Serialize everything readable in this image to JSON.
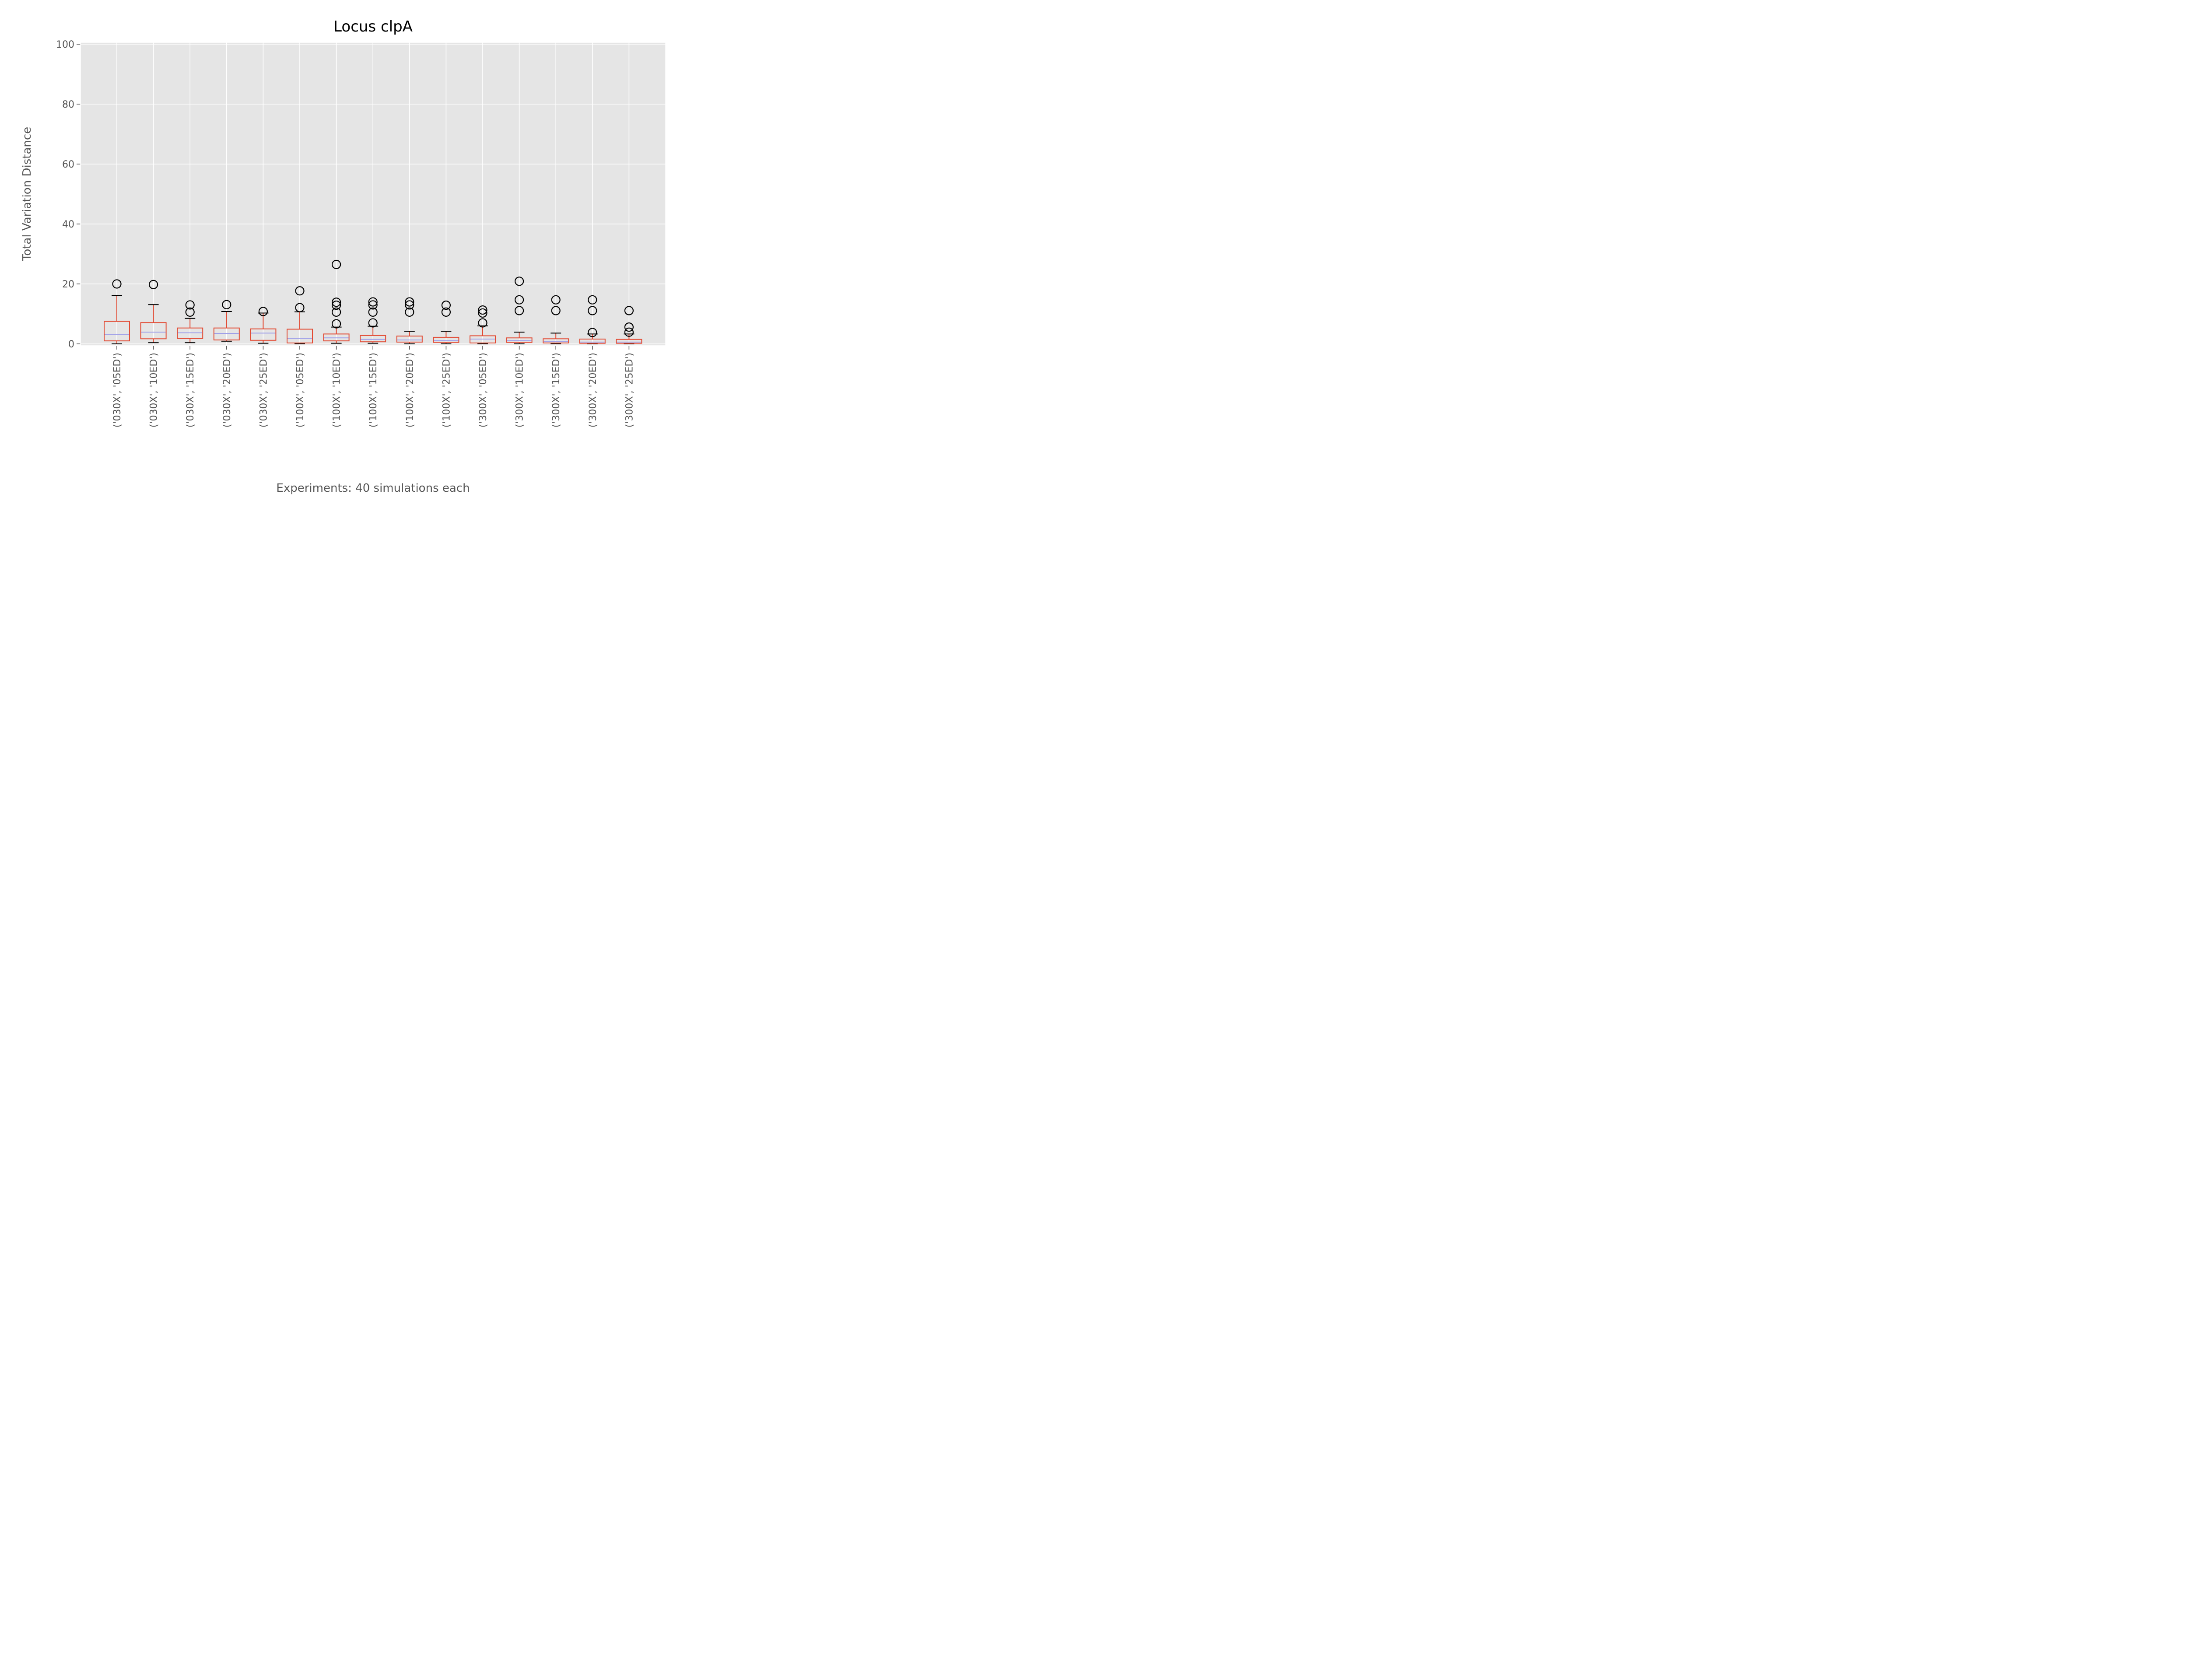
{
  "chart_data": {
    "type": "boxplot",
    "title": "Locus clpA",
    "xlabel": "Experiments: 40 simulations each",
    "ylabel": "Total Variation Distance",
    "ylim": [
      0,
      100
    ],
    "yticks": [
      "0",
      "20",
      "40",
      "60",
      "80",
      "100"
    ],
    "grid": true,
    "colors": {
      "box": "#e24a33",
      "median": "#8eba42",
      "median_line": "#a0a0e8",
      "flier": "#000000",
      "background": "#e5e5e5",
      "grid": "#ffffff"
    },
    "categories": [
      "('030X', '05ED')",
      "('030X', '10ED')",
      "('030X', '15ED')",
      "('030X', '20ED')",
      "('030X', '25ED')",
      "('100X', '05ED')",
      "('100X', '10ED')",
      "('100X', '15ED')",
      "('100X', '20ED')",
      "('100X', '25ED')",
      "('300X', '05ED')",
      "('300X', '10ED')",
      "('300X', '15ED')",
      "('300X', '20ED')",
      "('300X', '25ED')"
    ],
    "boxes": [
      {
        "whislo": 0.0,
        "q1": 1.0,
        "med": 3.2,
        "q3": 7.5,
        "whishi": 16.2,
        "fliers": [
          20.0
        ]
      },
      {
        "whislo": 0.4,
        "q1": 1.7,
        "med": 3.9,
        "q3": 7.1,
        "whishi": 13.1,
        "fliers": [
          19.8
        ]
      },
      {
        "whislo": 0.4,
        "q1": 1.8,
        "med": 3.7,
        "q3": 5.3,
        "whishi": 8.5,
        "fliers": [
          10.6,
          13.0
        ]
      },
      {
        "whislo": 0.9,
        "q1": 1.3,
        "med": 3.5,
        "q3": 5.3,
        "whishi": 10.8,
        "fliers": [
          13.1
        ]
      },
      {
        "whislo": 0.2,
        "q1": 1.2,
        "med": 3.6,
        "q3": 5.0,
        "whishi": 10.3,
        "fliers": [
          10.8
        ]
      },
      {
        "whislo": 0.0,
        "q1": 0.3,
        "med": 1.8,
        "q3": 4.9,
        "whishi": 10.7,
        "fliers": [
          12.1,
          17.7
        ]
      },
      {
        "whislo": 0.2,
        "q1": 1.0,
        "med": 2.0,
        "q3": 3.3,
        "whishi": 5.6,
        "fliers": [
          6.7,
          10.6,
          12.9,
          13.9,
          26.5
        ]
      },
      {
        "whislo": 0.2,
        "q1": 0.7,
        "med": 1.5,
        "q3": 2.8,
        "whishi": 5.9,
        "fliers": [
          7.0,
          10.6,
          13.0,
          14.0
        ]
      },
      {
        "whislo": 0.0,
        "q1": 0.6,
        "med": 1.3,
        "q3": 2.6,
        "whishi": 4.2,
        "fliers": [
          10.6,
          13.0,
          14.0
        ]
      },
      {
        "whislo": 0.0,
        "q1": 0.5,
        "med": 1.1,
        "q3": 2.2,
        "whishi": 4.2,
        "fliers": [
          10.6,
          12.9
        ]
      },
      {
        "whislo": 0.0,
        "q1": 0.3,
        "med": 1.6,
        "q3": 2.7,
        "whishi": 6.0,
        "fliers": [
          7.0,
          10.3,
          11.3
        ]
      },
      {
        "whislo": 0.0,
        "q1": 0.5,
        "med": 1.1,
        "q3": 2.0,
        "whishi": 3.9,
        "fliers": [
          11.1,
          14.7,
          20.9
        ]
      },
      {
        "whislo": 0.0,
        "q1": 0.3,
        "med": 0.8,
        "q3": 1.7,
        "whishi": 3.6,
        "fliers": [
          11.1,
          14.7
        ]
      },
      {
        "whislo": 0.0,
        "q1": 0.2,
        "med": 0.6,
        "q3": 1.6,
        "whishi": 3.3,
        "fliers": [
          3.8,
          11.1,
          14.7
        ]
      },
      {
        "whislo": 0.0,
        "q1": 0.2,
        "med": 0.6,
        "q3": 1.5,
        "whishi": 3.3,
        "fliers": [
          3.9,
          5.6,
          11.1
        ]
      }
    ]
  }
}
